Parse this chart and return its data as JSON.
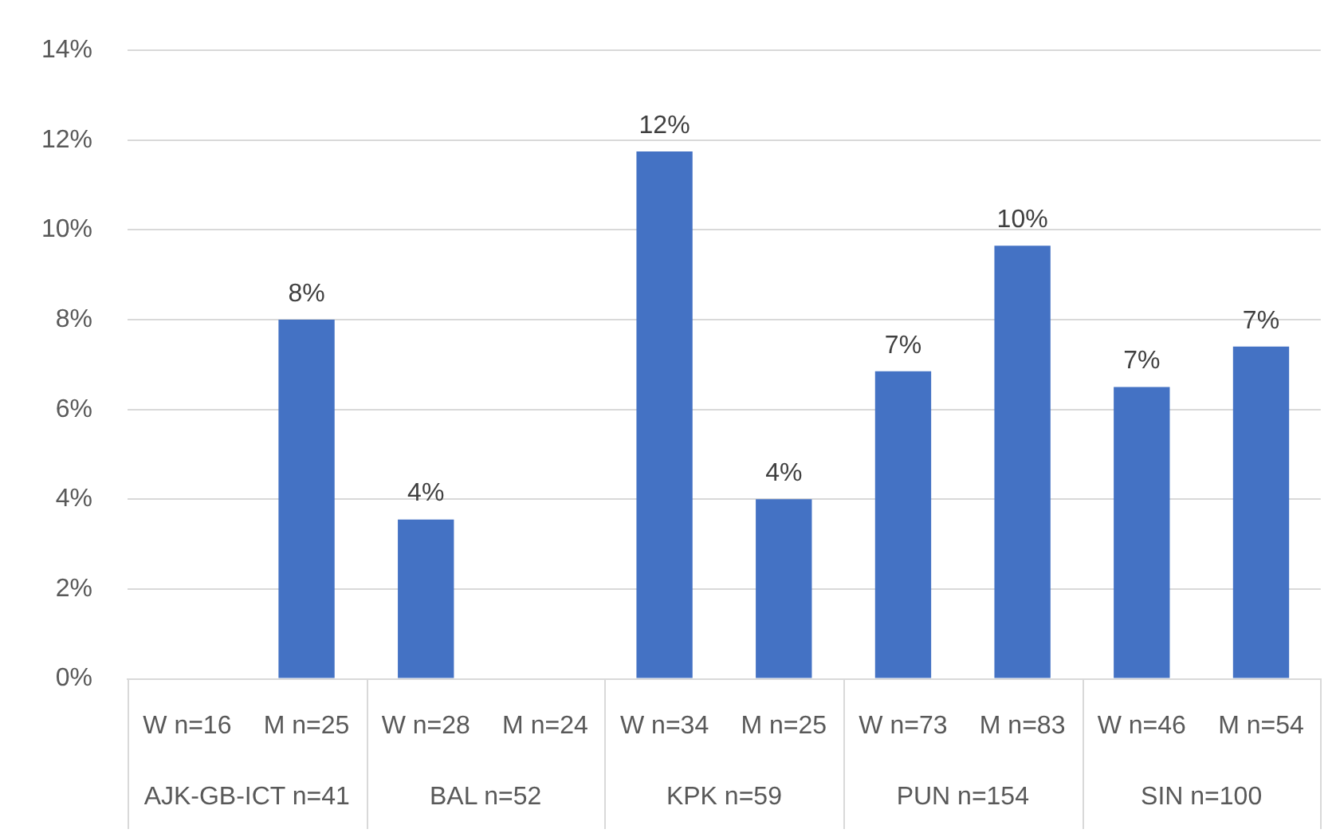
{
  "chart_data": {
    "type": "bar",
    "categories": [
      "W n=16",
      "M n=25",
      "W n=28",
      "M n=24",
      "W n=34",
      "M n=25",
      "W n=73",
      "M n=83",
      "W n=46",
      "M n=54"
    ],
    "values": [
      0,
      8.0,
      3.55,
      0,
      11.75,
      4.0,
      6.85,
      9.65,
      6.5,
      7.4
    ],
    "value_labels": [
      null,
      "8%",
      "4%",
      null,
      "12%",
      "4%",
      "7%",
      "10%",
      "7%",
      "7%"
    ],
    "color": "#4472c4",
    "ylim": [
      0,
      14
    ],
    "yticks": [
      {
        "value": 0,
        "label": "0%"
      },
      {
        "value": 2,
        "label": "2%"
      },
      {
        "value": 4,
        "label": "4%"
      },
      {
        "value": 6,
        "label": "6%"
      },
      {
        "value": 8,
        "label": "8%"
      },
      {
        "value": 10,
        "label": "10%"
      },
      {
        "value": 12,
        "label": "12%"
      },
      {
        "value": 14,
        "label": "14%"
      }
    ],
    "grid": "y",
    "annotations": [
      "AJK-GB-ICT n=41",
      "BAL n=52",
      "KPK n=59",
      "PUN n=154",
      "SIN n=100"
    ]
  }
}
